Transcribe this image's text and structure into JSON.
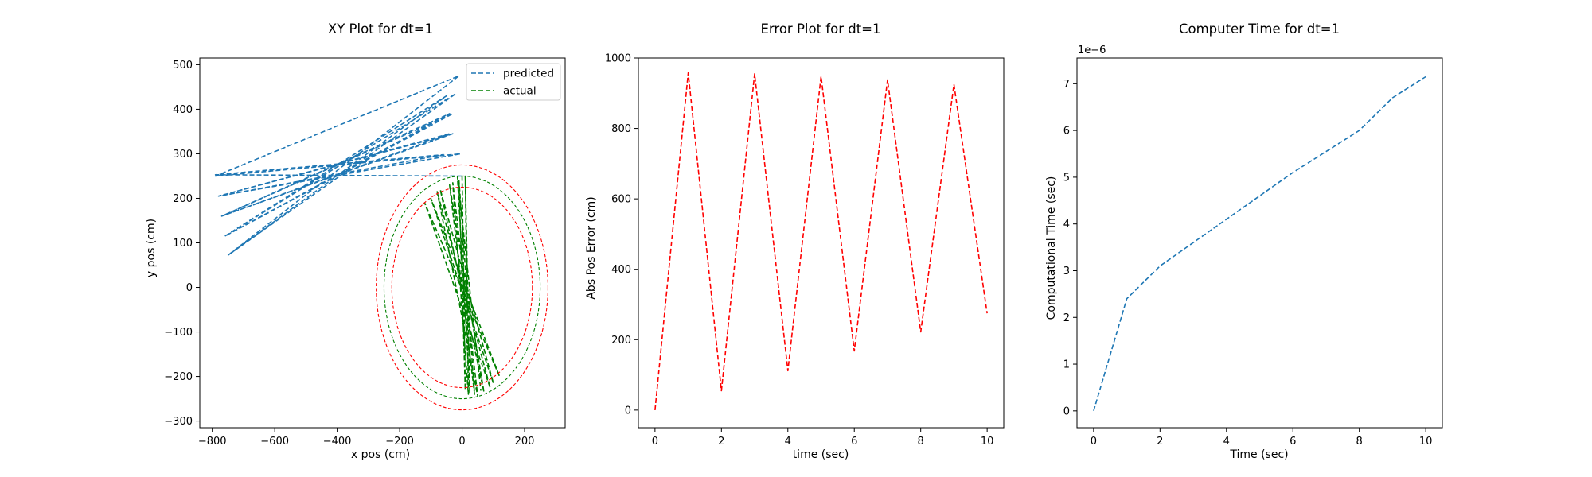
{
  "chart_data": [
    {
      "type": "line",
      "title": "XY Plot for dt=1",
      "xlabel": "x pos (cm)",
      "ylabel": "y pos (cm)",
      "xlim": [
        -840,
        330
      ],
      "ylim": [
        -315,
        515
      ],
      "xticks": [
        -800,
        -600,
        -400,
        -200,
        0,
        200
      ],
      "yticks": [
        -300,
        -200,
        -100,
        0,
        100,
        200,
        300,
        400,
        500
      ],
      "xtick_labels": [
        "−800",
        "−600",
        "−400",
        "−200",
        "0",
        "200"
      ],
      "ytick_labels": [
        "−300",
        "−200",
        "−100",
        "0",
        "100",
        "200",
        "300",
        "400",
        "500"
      ],
      "legend": {
        "position": "top-right",
        "entries": [
          "predicted",
          "actual"
        ]
      },
      "series": [
        {
          "name": "predicted",
          "color": "#1f77b4",
          "style": "dashed",
          "x": [
            0,
            -790,
            -60,
            -780,
            -40,
            -770,
            -30,
            -760,
            -20,
            -750,
            -10,
            -790,
            -5,
            -780,
            -30,
            -770,
            -40,
            -760,
            -50,
            -750
          ],
          "y": [
            250,
            253,
            298,
            205,
            345,
            160,
            390,
            115,
            435,
            72,
            475,
            250,
            300,
            205,
            345,
            160,
            390,
            115,
            430,
            72
          ]
        },
        {
          "name": "actual",
          "color": "#008000",
          "style": "dashed",
          "x": [
            0,
            10,
            -10,
            40,
            -40,
            70,
            -70,
            100,
            -100,
            120,
            -120,
            90,
            -80,
            50,
            -30,
            20,
            10,
            25,
            -15,
            60
          ],
          "y": [
            250,
            -230,
            240,
            -240,
            230,
            -235,
            220,
            -215,
            200,
            -200,
            190,
            -225,
            215,
            -245,
            235,
            -240,
            250,
            -238,
            248,
            -232
          ]
        },
        {
          "name": "inner circle",
          "color": "#ff0000",
          "style": "dashed",
          "shape": "ellipse",
          "center": [
            0,
            0
          ],
          "radii": [
            225,
            225
          ]
        },
        {
          "name": "actual orbit",
          "color": "#008000",
          "style": "dashed",
          "shape": "ellipse",
          "center": [
            0,
            0
          ],
          "radii": [
            250,
            250
          ]
        },
        {
          "name": "outer circle",
          "color": "#ff0000",
          "style": "dashed",
          "shape": "ellipse",
          "center": [
            0,
            0
          ],
          "radii": [
            275,
            275
          ]
        }
      ]
    },
    {
      "type": "line",
      "title": "Error Plot for dt=1",
      "xlabel": "time (sec)",
      "ylabel": "Abs Pos Error (cm)",
      "xlim": [
        -0.5,
        10.5
      ],
      "ylim": [
        -50,
        1000
      ],
      "xticks": [
        0,
        2,
        4,
        6,
        8,
        10
      ],
      "yticks": [
        0,
        200,
        400,
        600,
        800,
        1000
      ],
      "xtick_labels": [
        "0",
        "2",
        "4",
        "6",
        "8",
        "10"
      ],
      "ytick_labels": [
        "0",
        "200",
        "400",
        "600",
        "800",
        "1000"
      ],
      "series": [
        {
          "name": "error",
          "color": "#ff0000",
          "style": "dashed",
          "x": [
            0,
            1,
            2,
            3,
            4,
            5,
            6,
            7,
            8,
            9,
            10
          ],
          "y": [
            0,
            958,
            55,
            955,
            112,
            948,
            168,
            938,
            222,
            925,
            275
          ]
        }
      ]
    },
    {
      "type": "line",
      "title": "Computer Time for dt=1",
      "xlabel": "Time (sec)",
      "ylabel": "Computational Time (sec)",
      "offset_text": "1e−6",
      "xlim": [
        -0.5,
        10.5
      ],
      "ylim": [
        -0.36,
        7.55
      ],
      "xticks": [
        0,
        2,
        4,
        6,
        8,
        10
      ],
      "yticks": [
        0,
        1,
        2,
        3,
        4,
        5,
        6,
        7
      ],
      "xtick_labels": [
        "0",
        "2",
        "4",
        "6",
        "8",
        "10"
      ],
      "ytick_labels": [
        "0",
        "1",
        "2",
        "3",
        "4",
        "5",
        "6",
        "7"
      ],
      "series": [
        {
          "name": "computational time",
          "color": "#1f77b4",
          "style": "dashed",
          "x": [
            0,
            1,
            2,
            3,
            4,
            5,
            6,
            7,
            8,
            9,
            10
          ],
          "y": [
            0,
            2.4,
            3.1,
            3.6,
            4.1,
            4.6,
            5.1,
            5.55,
            6.0,
            6.7,
            7.15
          ]
        }
      ]
    }
  ]
}
